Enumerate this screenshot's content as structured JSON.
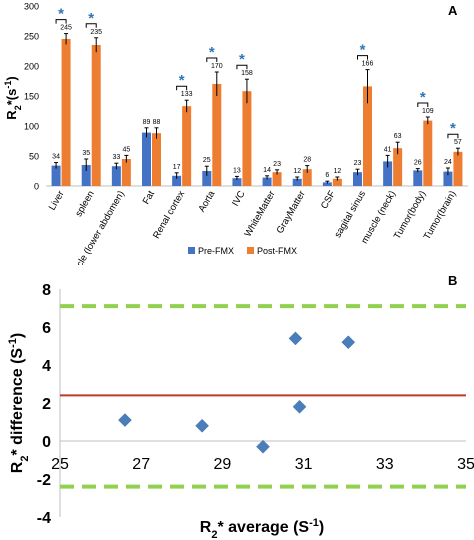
{
  "chart_data": [
    {
      "panel": "A",
      "type": "bar",
      "ylabel": "R2*(s-1)",
      "ylabel_main": "R",
      "ylabel_sub": "2",
      "ylabel_rest": "*(s",
      "ylabel_sup": "-1",
      "ylabel_end": ")",
      "ylim": [
        0,
        300
      ],
      "yticks": [
        "0",
        "50",
        "100",
        "150",
        "200",
        "250",
        "300"
      ],
      "grid": false,
      "legend_position": "bottom",
      "categories": [
        "Liver",
        "spleen",
        "muscle (lower abdomen)",
        "Fat",
        "Renal cortex",
        "Aorta",
        "IVC",
        "WhiteMatter",
        "GrayMatter",
        "CSF",
        "sagital sinus",
        "muscle (neck)",
        "Tumor(body)",
        "Tumor(brain)"
      ],
      "series": [
        {
          "name": "Pre-FMX",
          "color": "#4472c4",
          "values": [
            34,
            35,
            33,
            89,
            17,
            25,
            13,
            14,
            12,
            6,
            23,
            41,
            26,
            24
          ],
          "errors": [
            5,
            10,
            5,
            8,
            5,
            8,
            3,
            3,
            3,
            2,
            5,
            10,
            3,
            6
          ]
        },
        {
          "name": "Post-FMX",
          "color": "#ed7d31",
          "values": [
            245,
            235,
            45,
            88,
            133,
            170,
            158,
            23,
            28,
            12,
            166,
            63,
            109,
            57
          ],
          "errors": [
            9,
            12,
            6,
            9,
            10,
            20,
            20,
            4,
            6,
            3,
            28,
            10,
            6,
            6
          ]
        }
      ],
      "value_labels_pre": [
        "34",
        "35",
        "33",
        "89",
        "17",
        "25",
        "13",
        "14",
        "12",
        "6",
        "23",
        "41",
        "26",
        "24"
      ],
      "value_labels_post": [
        "245",
        "235",
        "45",
        "88",
        "133",
        "170",
        "158",
        "23",
        "28",
        "12",
        "166",
        "63",
        "109",
        "57"
      ],
      "significance_marker": "*",
      "significant_categories": [
        "Liver",
        "spleen",
        "Renal cortex",
        "Aorta",
        "IVC",
        "sagital sinus",
        "Tumor(body)",
        "Tumor(brain)"
      ],
      "significance_color": "#2e75b6"
    },
    {
      "panel": "B",
      "type": "scatter",
      "xlabel": "R2* average (S-1)",
      "xlabel_main": "R",
      "xlabel_sub": "2",
      "xlabel_rest": "* average (S",
      "xlabel_sup": "-1",
      "xlabel_end": ")",
      "ylabel": "R2* difference (S-1)",
      "ylabel_main": "R",
      "ylabel_sub": "2",
      "ylabel_rest": "* difference (S",
      "ylabel_sup": "-1",
      "ylabel_end": ")",
      "xlim": [
        25,
        35
      ],
      "ylim": [
        -4,
        8
      ],
      "xticks": [
        "25",
        "27",
        "29",
        "31",
        "33",
        "35"
      ],
      "yticks": [
        "-4",
        "-2",
        "0",
        "2",
        "4",
        "6",
        "8"
      ],
      "grid": false,
      "points": [
        {
          "x": 26.6,
          "y": 1.1
        },
        {
          "x": 28.5,
          "y": 0.8
        },
        {
          "x": 30.0,
          "y": -0.3
        },
        {
          "x": 30.8,
          "y": 5.4
        },
        {
          "x": 30.9,
          "y": 1.8
        },
        {
          "x": 32.1,
          "y": 5.2
        }
      ],
      "point_color": "#4a7ebb",
      "mean_line": {
        "y": 2.4,
        "color": "#c0392b"
      },
      "limit_lines": [
        {
          "y": 7.1
        },
        {
          "y": -2.4
        }
      ],
      "limit_color": "#92d050"
    }
  ]
}
